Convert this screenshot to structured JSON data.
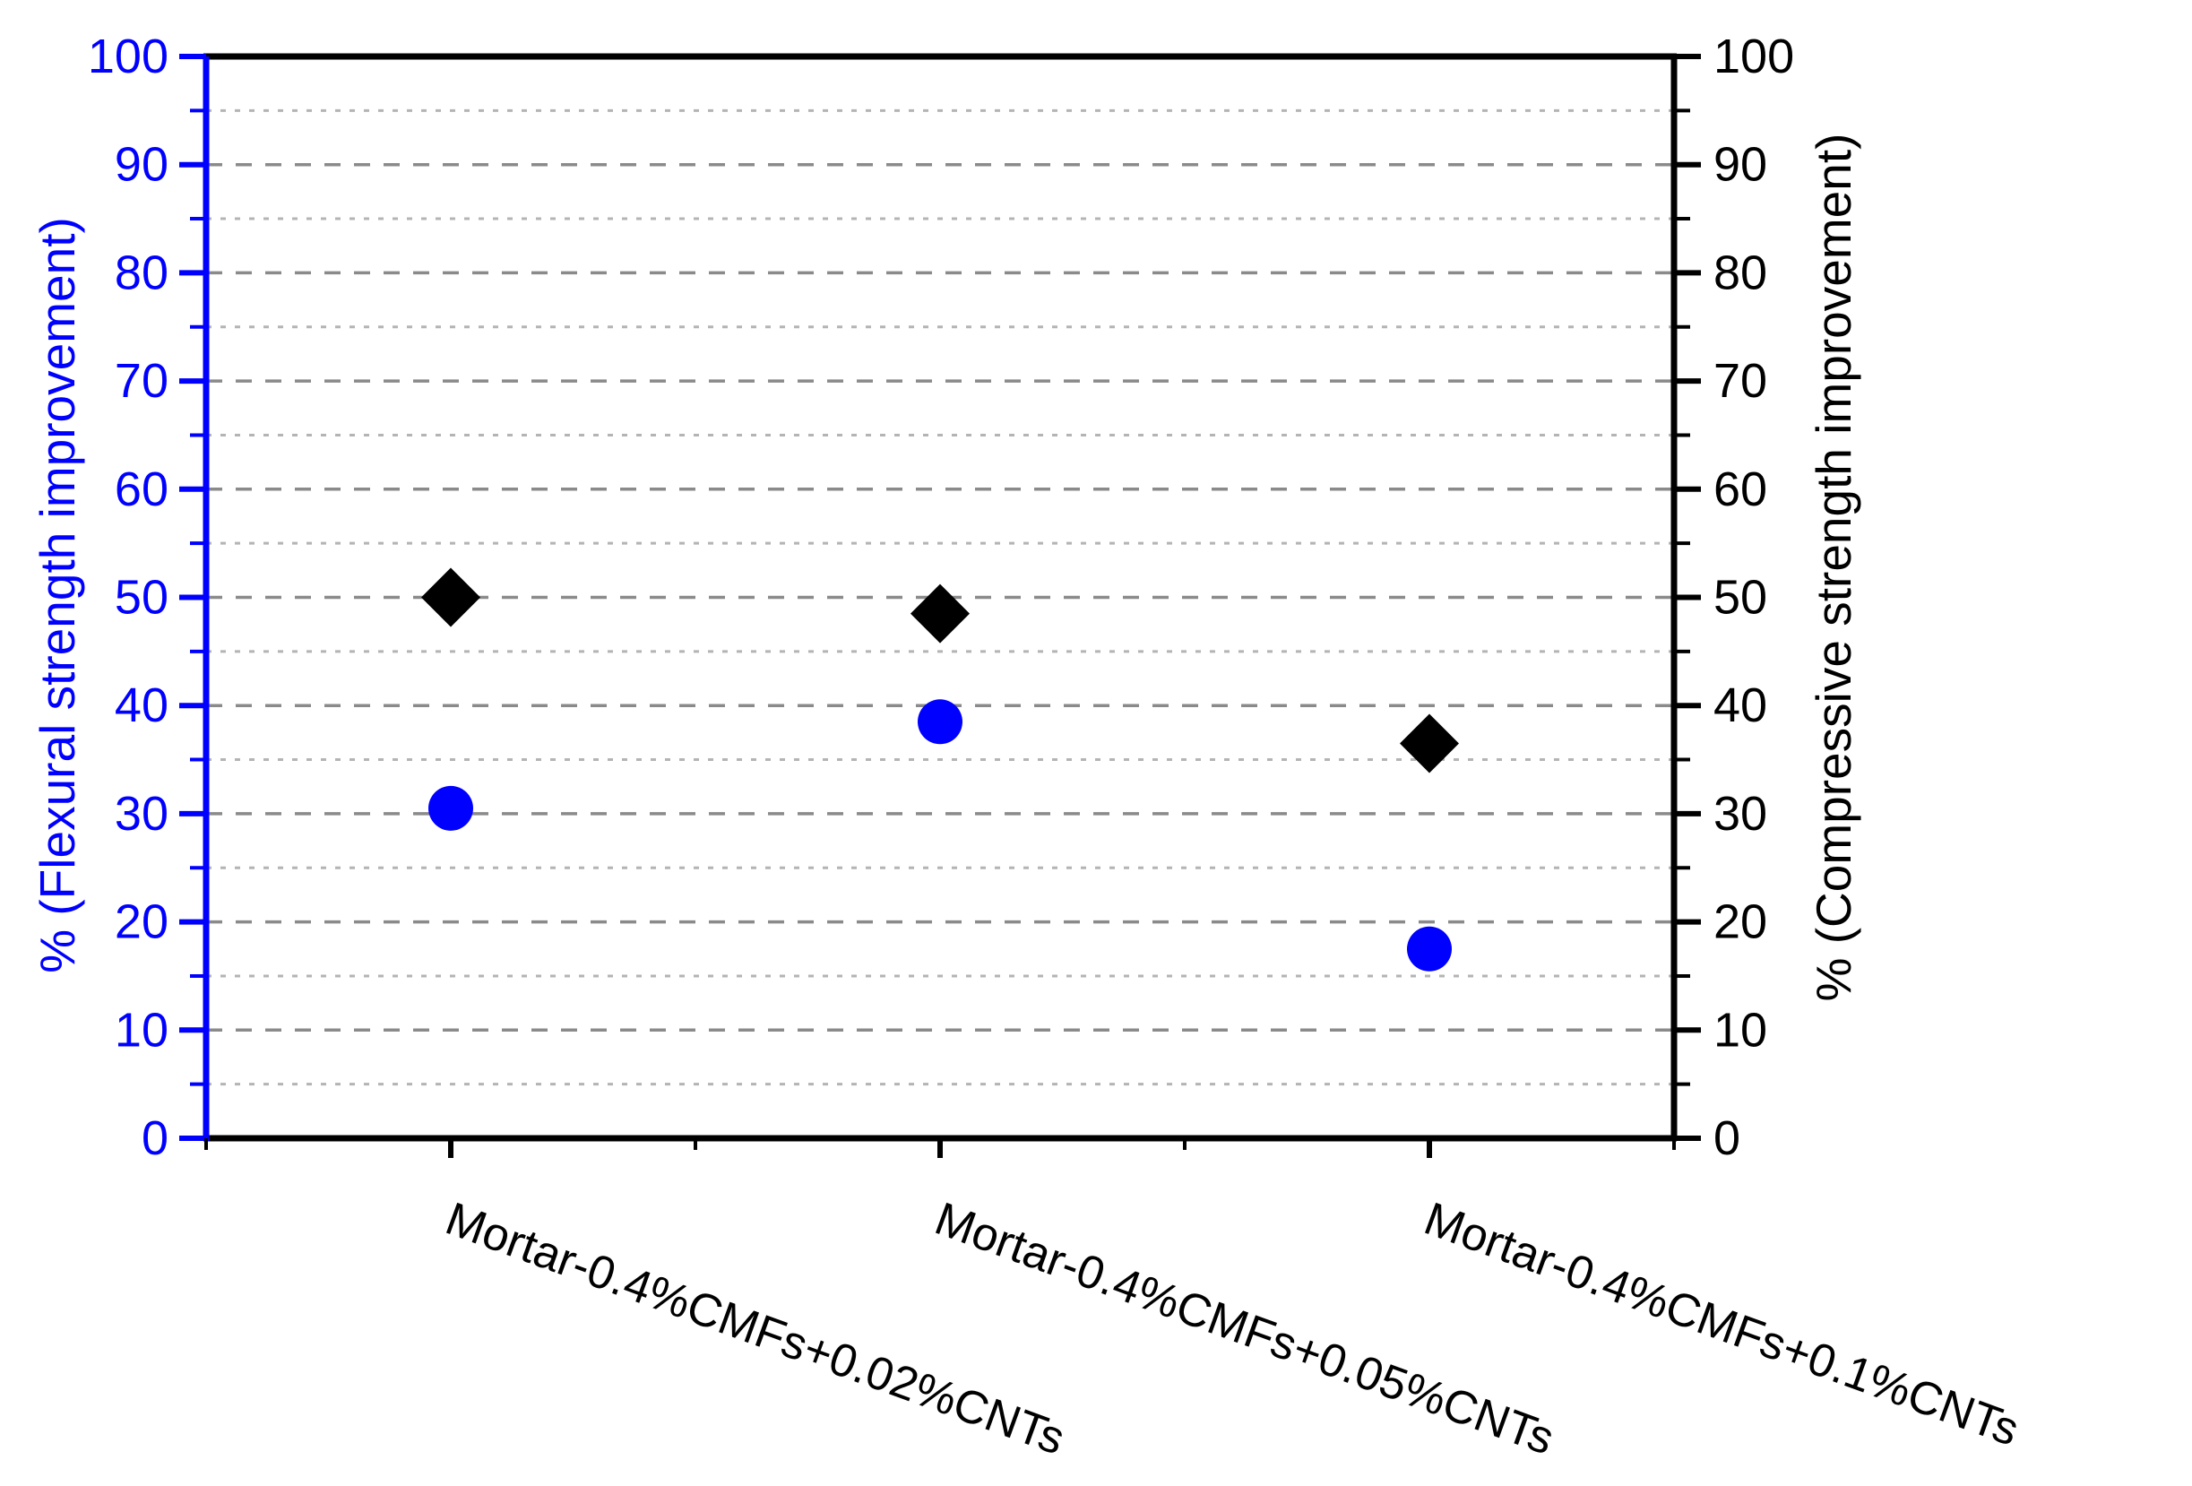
{
  "chart_data": {
    "type": "scatter",
    "categories": [
      "Mortar-0.4%CMFs+0.02%CNTs",
      "Mortar-0.4%CMFs+0.05%CNTs",
      "Mortar-0.4%CMFs+0.1%CNTs"
    ],
    "series": [
      {
        "name": "Flexural strength improvement",
        "marker": "circle",
        "color": "#0000ff",
        "axis": "left",
        "values": [
          30.5,
          38.5,
          17.5
        ]
      },
      {
        "name": "Compressive strength improvement",
        "marker": "diamond",
        "color": "#000000",
        "axis": "right",
        "values": [
          50,
          48.5,
          36.5
        ]
      }
    ],
    "left_axis": {
      "label": "% (Flexural strength improvement)",
      "color": "#0000ff",
      "min": 0,
      "max": 100,
      "major_step": 10,
      "minor_step": 5,
      "tick_labels": [
        "0",
        "10",
        "20",
        "30",
        "40",
        "50",
        "60",
        "70",
        "80",
        "90",
        "100"
      ]
    },
    "right_axis": {
      "label": "% (Compressive strength improvement)",
      "color": "#000000",
      "min": 0,
      "max": 100,
      "major_step": 10,
      "minor_step": 5,
      "tick_labels": [
        "0",
        "10",
        "20",
        "30",
        "40",
        "50",
        "60",
        "70",
        "80",
        "90",
        "100"
      ]
    },
    "x_axis": {
      "label": "",
      "tick_label_rotation_deg": 20
    },
    "grid": {
      "major_style": "dashed",
      "major_color": "#8a8a8a",
      "minor_style": "dotted",
      "minor_color": "#b4b4b4"
    },
    "legend": "none",
    "title": ""
  }
}
